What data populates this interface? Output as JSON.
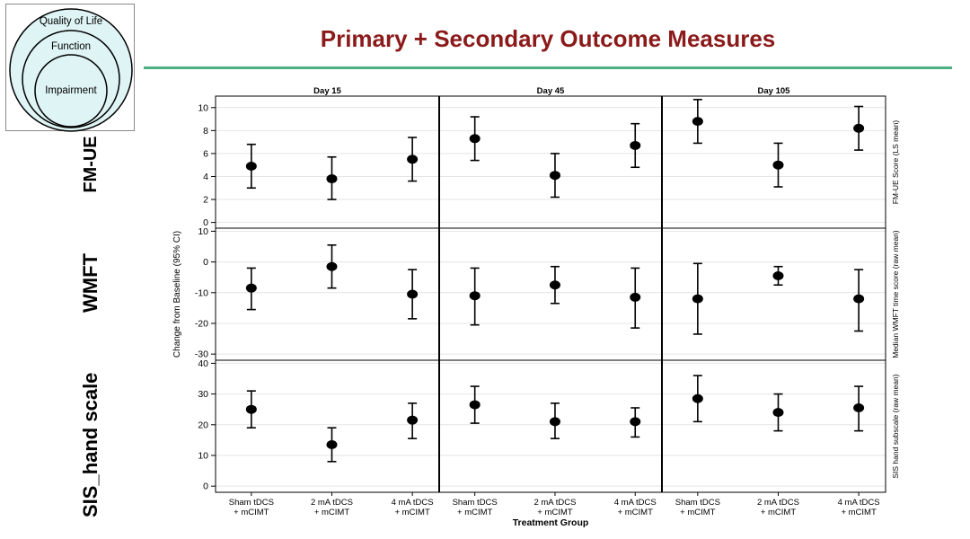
{
  "slide": {
    "title": "Primary + Secondary Outcome Measures"
  },
  "logo": {
    "outer_label": "Quality of Life",
    "middle_label": "Function",
    "inner_label": "Impairment"
  },
  "row_labels": [
    "FM-UE",
    "WMFT",
    "SIS_hand scale"
  ],
  "colors": {
    "title": "#8b1a1a",
    "rule": "#4fae82",
    "marker": "#000000",
    "grid": "#e4e4e4",
    "logo_fill": "#dff4f5"
  },
  "chart_data": {
    "type": "scatter",
    "subtype": "point-with-error-bars",
    "columns": [
      "Day 15",
      "Day 45",
      "Day 105"
    ],
    "categories": [
      "Sham tDCS\n+ mCIMT",
      "2 mA tDCS\n+ mCIMT",
      "4 mA tDCS\n+ mCIMT"
    ],
    "xlabel": "Treatment Group",
    "ylabel_left": "Change from Baseline (95% CI)",
    "grid": true,
    "rows": [
      {
        "key": "FM-UE",
        "ylabel_right": "FM-UE Score (LS mean)",
        "ylim": [
          -0.5,
          11
        ],
        "yticks": [
          0,
          2,
          4,
          6,
          8,
          10
        ],
        "points": [
          [
            {
              "y": 4.9,
              "lo": 3.0,
              "hi": 6.8
            },
            {
              "y": 3.8,
              "lo": 2.0,
              "hi": 5.7
            },
            {
              "y": 5.5,
              "lo": 3.6,
              "hi": 7.4
            }
          ],
          [
            {
              "y": 7.3,
              "lo": 5.4,
              "hi": 9.2
            },
            {
              "y": 4.1,
              "lo": 2.2,
              "hi": 6.0
            },
            {
              "y": 6.7,
              "lo": 4.8,
              "hi": 8.6
            }
          ],
          [
            {
              "y": 8.8,
              "lo": 6.9,
              "hi": 10.7
            },
            {
              "y": 5.0,
              "lo": 3.1,
              "hi": 6.9
            },
            {
              "y": 8.2,
              "lo": 6.3,
              "hi": 10.1
            }
          ]
        ]
      },
      {
        "key": "WMFT",
        "ylabel_right": "Median WMFT time score (raw mean)",
        "ylim": [
          -32,
          11
        ],
        "yticks": [
          -30,
          -20,
          -10,
          0,
          10
        ],
        "points": [
          [
            {
              "y": -8.5,
              "lo": -15.5,
              "hi": -2.0
            },
            {
              "y": -1.5,
              "lo": -8.5,
              "hi": 5.5
            },
            {
              "y": -10.5,
              "lo": -18.5,
              "hi": -2.5
            }
          ],
          [
            {
              "y": -11.0,
              "lo": -20.5,
              "hi": -2.0
            },
            {
              "y": -7.5,
              "lo": -13.5,
              "hi": -1.5
            },
            {
              "y": -11.5,
              "lo": -21.5,
              "hi": -2.0
            }
          ],
          [
            {
              "y": -12.0,
              "lo": -23.5,
              "hi": -0.5
            },
            {
              "y": -4.5,
              "lo": -7.5,
              "hi": -1.5
            },
            {
              "y": -12.0,
              "lo": -22.5,
              "hi": -2.5
            }
          ]
        ]
      },
      {
        "key": "SIS_hand",
        "ylabel_right": "SIS hand subscale (raw mean)",
        "ylim": [
          -2,
          41
        ],
        "yticks": [
          0,
          10,
          20,
          30,
          40
        ],
        "points": [
          [
            {
              "y": 25.0,
              "lo": 19.0,
              "hi": 31.0
            },
            {
              "y": 13.5,
              "lo": 8.0,
              "hi": 19.0
            },
            {
              "y": 21.5,
              "lo": 15.5,
              "hi": 27.0
            }
          ],
          [
            {
              "y": 26.5,
              "lo": 20.5,
              "hi": 32.5
            },
            {
              "y": 21.0,
              "lo": 15.5,
              "hi": 27.0
            },
            {
              "y": 21.0,
              "lo": 16.0,
              "hi": 25.5
            }
          ],
          [
            {
              "y": 28.5,
              "lo": 21.0,
              "hi": 36.0
            },
            {
              "y": 24.0,
              "lo": 18.0,
              "hi": 30.0
            },
            {
              "y": 25.5,
              "lo": 18.0,
              "hi": 32.5
            }
          ]
        ]
      }
    ]
  }
}
